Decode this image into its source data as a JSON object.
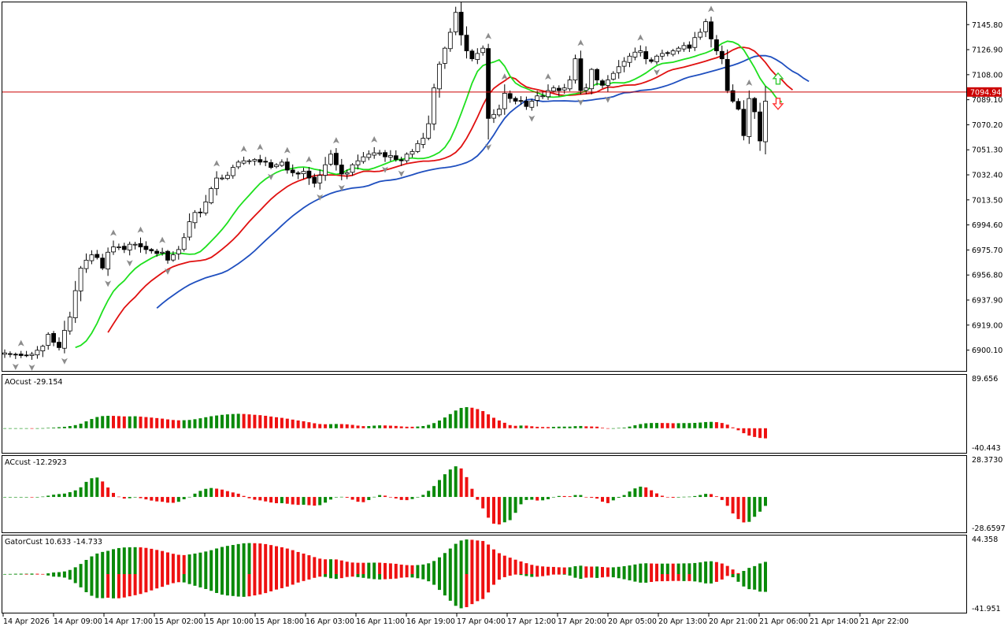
{
  "colors": {
    "bg": "#ffffff",
    "frame": "#000000",
    "candle_up_fill": "#ffffff",
    "candle_down_fill": "#000000",
    "candle_line": "#000000",
    "fractal": "#8c8c8c",
    "jaw": "#1f4fbf",
    "teeth": "#e01010",
    "lips": "#1ee01e",
    "bid_line": "#cc0000",
    "bar_up": "#0a8a0a",
    "bar_down": "#ee1111",
    "arrow_up": "#33cc33",
    "arrow_down": "#ff3333"
  },
  "main_pane": {
    "price_ticks": [
      "7145.80",
      "7126.90",
      "7108.00",
      "7089.10",
      "7070.20",
      "7051.30",
      "7032.40",
      "7013.50",
      "6994.60",
      "6975.70",
      "6956.80",
      "6937.90",
      "6919.00",
      "6900.10"
    ],
    "bid_price_label": "7094.94",
    "price_range": [
      6885.0,
      7162.0
    ]
  },
  "ao_pane": {
    "title": "AOcust -29.154",
    "top_label": "89.656",
    "bottom_label": "-40.443"
  },
  "ac_pane": {
    "title": "ACcust -12.2923",
    "top_label": "28.3730",
    "bottom_label": "-28.6597"
  },
  "gator_pane": {
    "title": "GatorCust 10.633 -14.733",
    "top_label": "44.358",
    "bottom_label": "-41.951"
  },
  "time_labels": [
    "14 Apr 2026",
    "14 Apr 09:00",
    "14 Apr 17:00",
    "15 Apr 02:00",
    "15 Apr 10:00",
    "15 Apr 18:00",
    "16 Apr 03:00",
    "16 Apr 11:00",
    "16 Apr 19:00",
    "17 Apr 04:00",
    "17 Apr 12:00",
    "17 Apr 20:00",
    "20 Apr 05:00",
    "20 Apr 13:00",
    "20 Apr 21:00",
    "21 Apr 06:00",
    "21 Apr 14:00",
    "21 Apr 22:00"
  ],
  "chart_data": {
    "type": "candlestick",
    "symbol_pane": "main",
    "close_path": [
      6898,
      6897,
      6897,
      6896,
      6896,
      6897,
      6900,
      6903,
      6912,
      6906,
      6902,
      6915,
      6925,
      6945,
      6962,
      6968,
      6972,
      6970,
      6962,
      6974,
      6978,
      6978,
      6976,
      6980,
      6980,
      6978,
      6976,
      6975,
      6973,
      6974,
      6968,
      6972,
      6976,
      6985,
      6997,
      7004,
      7004,
      7012,
      7022,
      7030,
      7030,
      7032,
      7038,
      7042,
      7043,
      7043,
      7044,
      7042,
      7042,
      7038,
      7040,
      7042,
      7036,
      7034,
      7033,
      7035,
      7030,
      7026,
      7032,
      7040,
      7048,
      7040,
      7033,
      7034,
      7040,
      7043,
      7046,
      7048,
      7049,
      7049,
      7046,
      7047,
      7044,
      7043,
      7048,
      7050,
      7056,
      7060,
      7071,
      7098,
      7116,
      7128,
      7140,
      7155,
      7138,
      7126,
      7120,
      7124,
      7128,
      7075,
      7078,
      7082,
      7094,
      7090,
      7088,
      7088,
      7084,
      7088,
      7092,
      7092,
      7096,
      7098,
      7096,
      7098,
      7104,
      7120,
      7096,
      7098,
      7112,
      7104,
      7100,
      7104,
      7109,
      7114,
      7118,
      7122,
      7125,
      7126,
      7120,
      7118,
      7122,
      7124,
      7124,
      7126,
      7128,
      7130,
      7128,
      7136,
      7140,
      7148,
      7135,
      7126,
      7120,
      7096,
      7088,
      7082,
      7062,
      7090,
      7080,
      7058,
      7088
    ]
  }
}
